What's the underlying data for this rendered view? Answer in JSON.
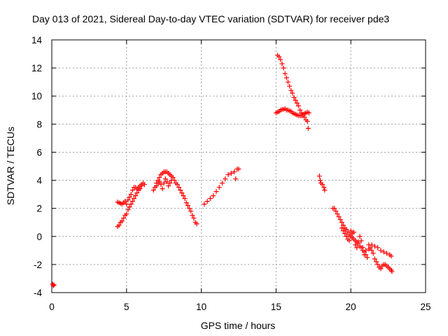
{
  "chart_data": {
    "type": "scatter",
    "title": "Day 013 of 2021, Sidereal Day-to-day VTEC variation (SDTVAR) for receiver pde3",
    "xlabel": "GPS time / hours",
    "ylabel": "SDTVAR / TECUs",
    "xlim": [
      0,
      25
    ],
    "ylim": [
      -4,
      14
    ],
    "x_ticks": [
      "0",
      "5",
      "10",
      "15",
      "20",
      "25"
    ],
    "y_ticks": [
      "-4",
      "-2",
      "0",
      "2",
      "4",
      "6",
      "8",
      "10",
      "12",
      "14"
    ],
    "grid": true,
    "marker": "plus",
    "color": "#ff0000",
    "series": [
      {
        "name": "SDTVAR",
        "points": [
          [
            0.05,
            -3.4
          ],
          [
            0.1,
            -3.5
          ],
          [
            0.15,
            -3.45
          ],
          [
            4.4,
            2.45
          ],
          [
            4.5,
            2.4
          ],
          [
            4.6,
            2.35
          ],
          [
            4.7,
            2.3
          ],
          [
            4.8,
            2.4
          ],
          [
            4.9,
            2.5
          ],
          [
            5.0,
            2.3
          ],
          [
            5.1,
            2.6
          ],
          [
            5.2,
            2.8
          ],
          [
            5.3,
            3.0
          ],
          [
            5.4,
            3.3
          ],
          [
            5.5,
            3.5
          ],
          [
            5.6,
            3.5
          ],
          [
            5.7,
            3.4
          ],
          [
            5.8,
            3.5
          ],
          [
            5.9,
            3.6
          ],
          [
            6.0,
            3.7
          ],
          [
            6.1,
            3.8
          ],
          [
            6.2,
            3.7
          ],
          [
            4.4,
            0.7
          ],
          [
            4.5,
            0.8
          ],
          [
            4.6,
            1.0
          ],
          [
            4.7,
            1.1
          ],
          [
            4.8,
            1.3
          ],
          [
            4.9,
            1.5
          ],
          [
            5.0,
            1.6
          ],
          [
            5.1,
            1.9
          ],
          [
            5.2,
            2.1
          ],
          [
            5.3,
            2.3
          ],
          [
            5.4,
            2.5
          ],
          [
            5.5,
            2.7
          ],
          [
            5.6,
            2.9
          ],
          [
            5.7,
            3.1
          ],
          [
            5.8,
            3.3
          ],
          [
            5.9,
            3.4
          ],
          [
            6.0,
            3.6
          ],
          [
            6.8,
            3.3
          ],
          [
            6.9,
            3.5
          ],
          [
            7.0,
            3.8
          ],
          [
            7.1,
            4.0
          ],
          [
            7.2,
            4.2
          ],
          [
            7.3,
            4.4
          ],
          [
            7.4,
            4.5
          ],
          [
            7.5,
            4.6
          ],
          [
            7.6,
            4.6
          ],
          [
            7.7,
            4.6
          ],
          [
            7.8,
            4.5
          ],
          [
            7.9,
            4.4
          ],
          [
            8.0,
            4.3
          ],
          [
            8.1,
            4.2
          ],
          [
            8.2,
            4.0
          ],
          [
            8.3,
            3.8
          ],
          [
            8.4,
            3.7
          ],
          [
            8.5,
            3.5
          ],
          [
            8.6,
            3.3
          ],
          [
            8.7,
            3.1
          ],
          [
            8.8,
            2.9
          ],
          [
            8.9,
            2.7
          ],
          [
            9.0,
            2.4
          ],
          [
            9.1,
            2.2
          ],
          [
            9.2,
            2.0
          ],
          [
            9.3,
            1.8
          ],
          [
            9.4,
            1.5
          ],
          [
            9.5,
            1.3
          ],
          [
            9.6,
            1.0
          ],
          [
            9.7,
            0.9
          ],
          [
            7.0,
            3.6
          ],
          [
            7.1,
            3.8
          ],
          [
            7.2,
            3.9
          ],
          [
            7.3,
            3.7
          ],
          [
            7.4,
            3.4
          ],
          [
            7.5,
            3.8
          ],
          [
            7.6,
            4.1
          ],
          [
            7.7,
            3.9
          ],
          [
            7.8,
            3.6
          ],
          [
            7.9,
            3.8
          ],
          [
            8.0,
            4.0
          ],
          [
            10.2,
            2.3
          ],
          [
            10.4,
            2.5
          ],
          [
            10.6,
            2.7
          ],
          [
            10.8,
            2.9
          ],
          [
            11.0,
            3.2
          ],
          [
            11.2,
            3.5
          ],
          [
            11.4,
            3.8
          ],
          [
            11.6,
            4.1
          ],
          [
            11.8,
            4.4
          ],
          [
            12.0,
            4.5
          ],
          [
            12.2,
            4.6
          ],
          [
            12.3,
            4.1
          ],
          [
            12.4,
            4.8
          ],
          [
            12.5,
            4.8
          ],
          [
            15.1,
            12.9
          ],
          [
            15.2,
            12.8
          ],
          [
            15.3,
            12.6
          ],
          [
            15.4,
            12.3
          ],
          [
            15.5,
            12.0
          ],
          [
            15.6,
            11.6
          ],
          [
            15.7,
            11.3
          ],
          [
            15.8,
            11.0
          ],
          [
            15.9,
            10.7
          ],
          [
            16.0,
            10.4
          ],
          [
            16.1,
            10.2
          ],
          [
            16.2,
            9.9
          ],
          [
            16.3,
            9.7
          ],
          [
            16.4,
            9.5
          ],
          [
            16.5,
            9.3
          ],
          [
            16.6,
            9.0
          ],
          [
            16.7,
            8.8
          ],
          [
            16.8,
            8.6
          ],
          [
            16.9,
            8.5
          ],
          [
            17.0,
            8.3
          ],
          [
            17.1,
            8.2
          ],
          [
            17.15,
            7.7
          ],
          [
            15.0,
            8.8
          ],
          [
            15.1,
            8.85
          ],
          [
            15.2,
            8.9
          ],
          [
            15.3,
            9.0
          ],
          [
            15.4,
            9.05
          ],
          [
            15.5,
            9.05
          ],
          [
            15.6,
            9.1
          ],
          [
            15.7,
            9.0
          ],
          [
            15.8,
            9.0
          ],
          [
            15.9,
            8.95
          ],
          [
            16.0,
            8.9
          ],
          [
            16.1,
            8.8
          ],
          [
            16.2,
            8.75
          ],
          [
            16.3,
            8.7
          ],
          [
            16.4,
            8.65
          ],
          [
            16.5,
            8.6
          ],
          [
            16.6,
            8.6
          ],
          [
            16.7,
            8.6
          ],
          [
            16.8,
            8.7
          ],
          [
            16.9,
            8.75
          ],
          [
            17.0,
            8.8
          ],
          [
            17.1,
            8.85
          ],
          [
            17.2,
            8.8
          ],
          [
            17.9,
            4.3
          ],
          [
            17.95,
            4.0
          ],
          [
            18.0,
            3.8
          ],
          [
            18.1,
            3.7
          ],
          [
            18.2,
            3.5
          ],
          [
            18.25,
            3.3
          ],
          [
            18.8,
            2.0
          ],
          [
            18.9,
            2.0
          ],
          [
            19.0,
            1.8
          ],
          [
            19.1,
            1.6
          ],
          [
            19.2,
            1.4
          ],
          [
            19.3,
            1.2
          ],
          [
            19.4,
            1.0
          ],
          [
            19.5,
            0.8
          ],
          [
            19.6,
            0.6
          ],
          [
            19.7,
            0.5
          ],
          [
            19.8,
            0.3
          ],
          [
            19.9,
            0.1
          ],
          [
            20.0,
            0.0
          ],
          [
            20.1,
            -0.1
          ],
          [
            20.2,
            -0.2
          ],
          [
            20.3,
            -0.3
          ],
          [
            20.4,
            -0.4
          ],
          [
            20.5,
            -0.5
          ],
          [
            20.6,
            -0.7
          ],
          [
            20.7,
            -0.8
          ],
          [
            20.8,
            -1.0
          ],
          [
            20.9,
            -1.1
          ],
          [
            21.0,
            -1.3
          ],
          [
            21.1,
            -1.5
          ],
          [
            19.4,
            0.6
          ],
          [
            19.5,
            0.4
          ],
          [
            19.6,
            0.2
          ],
          [
            19.7,
            0.0
          ],
          [
            19.8,
            -0.2
          ],
          [
            19.9,
            -0.3
          ],
          [
            20.0,
            0.4
          ],
          [
            20.1,
            0.2
          ],
          [
            20.2,
            0.3
          ],
          [
            20.3,
            -0.6
          ],
          [
            20.4,
            -0.8
          ],
          [
            20.5,
            -0.4
          ],
          [
            20.6,
            0.0
          ],
          [
            20.7,
            -0.3
          ],
          [
            20.8,
            -0.8
          ],
          [
            20.9,
            -1.3
          ],
          [
            21.0,
            -1.0
          ],
          [
            21.2,
            -0.6
          ],
          [
            21.3,
            -0.8
          ],
          [
            21.4,
            -1.0
          ],
          [
            21.5,
            -1.2
          ],
          [
            21.6,
            -1.6
          ],
          [
            21.7,
            -1.8
          ],
          [
            21.8,
            -2.0
          ],
          [
            21.9,
            -2.2
          ],
          [
            22.0,
            -2.3
          ],
          [
            22.1,
            -2.1
          ],
          [
            22.2,
            -2.0
          ],
          [
            22.3,
            -2.0
          ],
          [
            22.4,
            -2.1
          ],
          [
            22.5,
            -2.2
          ],
          [
            22.6,
            -2.3
          ],
          [
            22.7,
            -2.4
          ],
          [
            22.75,
            -2.5
          ],
          [
            21.2,
            -0.9
          ],
          [
            21.4,
            -0.6
          ],
          [
            21.6,
            -0.7
          ],
          [
            21.8,
            -0.8
          ],
          [
            22.0,
            -1.0
          ],
          [
            22.2,
            -1.1
          ],
          [
            22.4,
            -1.2
          ],
          [
            22.6,
            -1.3
          ],
          [
            22.7,
            -1.4
          ]
        ]
      }
    ]
  }
}
